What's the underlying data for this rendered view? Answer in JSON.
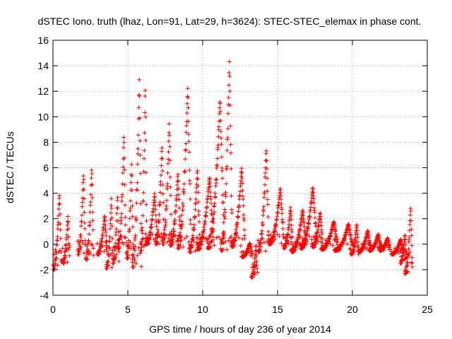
{
  "chart_data": {
    "type": "scatter",
    "title": "dSTEC Iono. truth (lhaz, Lon=91, Lat=29, h=3624): STEC-STEC_elemax in phase cont.",
    "xlabel": "GPS time / hours of day 236 of year 2014",
    "ylabel": "dSTEC  / TECUs",
    "xlim": [
      0,
      25
    ],
    "ylim": [
      -4,
      16
    ],
    "xticks": [
      0,
      5,
      10,
      15,
      20,
      25
    ],
    "yticks": [
      -4,
      -2,
      0,
      2,
      4,
      6,
      8,
      10,
      12,
      14,
      16
    ],
    "grid": true,
    "marker": "+",
    "color": "#ff0000",
    "arcs": [
      {
        "t0": 0.0,
        "t1": 0.55,
        "min": -2.0,
        "max": 4.0
      },
      {
        "t0": 0.65,
        "t1": 1.1,
        "min": -1.5,
        "max": 2.2
      },
      {
        "t0": 1.65,
        "t1": 2.15,
        "min": -0.8,
        "max": 5.6
      },
      {
        "t0": 2.2,
        "t1": 2.7,
        "min": -1.2,
        "max": 6.1
      },
      {
        "t0": 2.95,
        "t1": 3.6,
        "min": -0.8,
        "max": 2.3
      },
      {
        "t0": 3.55,
        "t1": 4.0,
        "min": -1.9,
        "max": 3.6
      },
      {
        "t0": 4.0,
        "t1": 4.4,
        "min": -1.5,
        "max": 3.9
      },
      {
        "t0": 4.35,
        "t1": 4.85,
        "min": -0.3,
        "max": 8.7
      },
      {
        "t0": 4.9,
        "t1": 5.35,
        "min": -1.1,
        "max": 6.3
      },
      {
        "t0": 5.3,
        "t1": 5.9,
        "min": -1.8,
        "max": 13.0
      },
      {
        "t0": 5.85,
        "t1": 6.25,
        "min": -0.5,
        "max": 12.7
      },
      {
        "t0": 6.2,
        "t1": 6.95,
        "min": 0.0,
        "max": 4.0
      },
      {
        "t0": 6.85,
        "t1": 7.4,
        "min": 0.0,
        "max": 7.8
      },
      {
        "t0": 7.3,
        "t1": 7.9,
        "min": 0.0,
        "max": 9.5
      },
      {
        "t0": 7.8,
        "t1": 8.5,
        "min": -0.1,
        "max": 5.6
      },
      {
        "t0": 8.3,
        "t1": 9.2,
        "min": -0.3,
        "max": 12.3
      },
      {
        "t0": 9.1,
        "t1": 9.8,
        "min": -0.6,
        "max": 5.9
      },
      {
        "t0": 9.6,
        "t1": 10.7,
        "min": -0.4,
        "max": 5.3
      },
      {
        "t0": 10.3,
        "t1": 11.4,
        "min": -0.3,
        "max": 11.4
      },
      {
        "t0": 11.2,
        "t1": 11.95,
        "min": -0.5,
        "max": 14.4
      },
      {
        "t0": 11.9,
        "t1": 12.8,
        "min": -0.2,
        "max": 6.0
      },
      {
        "t0": 12.6,
        "t1": 13.3,
        "min": -1.0,
        "max": 0.1
      },
      {
        "t0": 13.25,
        "t1": 13.65,
        "min": -2.6,
        "max": 0.0
      },
      {
        "t0": 13.7,
        "t1": 14.4,
        "min": -0.6,
        "max": 7.5
      },
      {
        "t0": 14.4,
        "t1": 15.4,
        "min": 0.0,
        "max": 4.4
      },
      {
        "t0": 15.4,
        "t1": 16.0,
        "min": -0.3,
        "max": 2.9
      },
      {
        "t0": 15.9,
        "t1": 16.9,
        "min": -0.6,
        "max": 2.7
      },
      {
        "t0": 16.5,
        "t1": 17.6,
        "min": -0.3,
        "max": 4.5
      },
      {
        "t0": 17.3,
        "t1": 18.0,
        "min": -0.2,
        "max": 2.5
      },
      {
        "t0": 17.9,
        "t1": 19.0,
        "min": -0.4,
        "max": 1.8
      },
      {
        "t0": 18.8,
        "t1": 20.0,
        "min": -0.5,
        "max": 1.6
      },
      {
        "t0": 19.9,
        "t1": 20.4,
        "min": -0.8,
        "max": 1.6
      },
      {
        "t0": 20.4,
        "t1": 21.2,
        "min": -0.6,
        "max": 1.1
      },
      {
        "t0": 21.1,
        "t1": 21.9,
        "min": -0.5,
        "max": 0.8
      },
      {
        "t0": 21.8,
        "t1": 22.5,
        "min": -0.5,
        "max": 0.5
      },
      {
        "t0": 22.6,
        "t1": 23.4,
        "min": -0.8,
        "max": 0.4
      },
      {
        "t0": 23.2,
        "t1": 23.6,
        "min": -1.5,
        "max": 0.8
      },
      {
        "t0": 23.5,
        "t1": 24.0,
        "min": -2.3,
        "max": 3.0
      }
    ]
  }
}
